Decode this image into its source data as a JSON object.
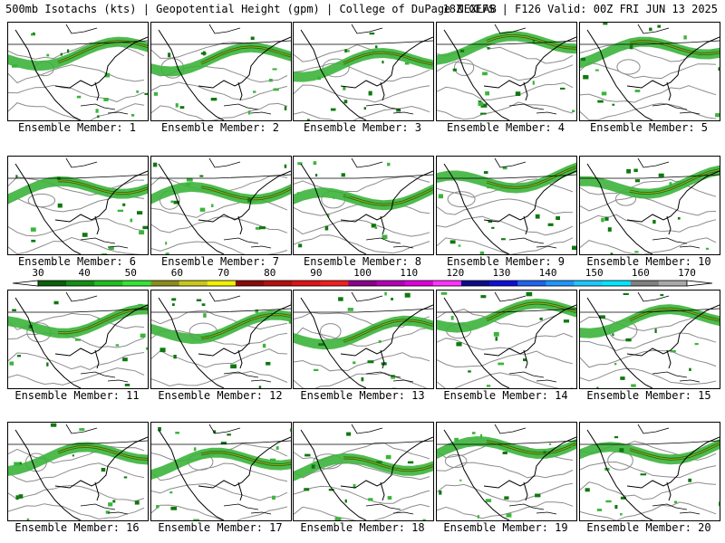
{
  "header": {
    "left": "500mb Isotachs (kts) | Geopotential Height (gpm) | College of DuPage NEXLAB",
    "right": "18Z GEFS | F126 Valid: 00Z FRI JUN 13 2025"
  },
  "member_label_prefix": "Ensemble Member: ",
  "members": [
    {
      "number": "1",
      "jet": "Ensemble Member: 1"
    },
    {
      "number": "2",
      "jet": "Ensemble Member: 2"
    },
    {
      "number": "3",
      "jet": "Ensemble Member: 3"
    },
    {
      "number": "4",
      "jet": "Ensemble Member: 4"
    },
    {
      "number": "5",
      "jet": "Ensemble Member: 5"
    },
    {
      "number": "6",
      "jet": "Ensemble Member: 6"
    },
    {
      "number": "7",
      "jet": "Ensemble Member: 7"
    },
    {
      "number": "8",
      "jet": "Ensemble Member: 8"
    },
    {
      "number": "9",
      "jet": "Ensemble Member: 9"
    },
    {
      "number": "10",
      "jet": "Ensemble Member: 10"
    },
    {
      "number": "11",
      "jet": "Ensemble Member: 11"
    },
    {
      "number": "12",
      "jet": "Ensemble Member: 12"
    },
    {
      "number": "13",
      "jet": "Ensemble Member: 13"
    },
    {
      "number": "14",
      "jet": "Ensemble Member: 14"
    },
    {
      "number": "15",
      "jet": "Ensemble Member: 15"
    },
    {
      "number": "16",
      "jet": "Ensemble Member: 16"
    },
    {
      "number": "17",
      "jet": "Ensemble Member: 17"
    },
    {
      "number": "18",
      "jet": "Ensemble Member: 18"
    },
    {
      "number": "19",
      "jet": "Ensemble Member: 19"
    },
    {
      "number": "20",
      "jet": "Ensemble Member: 20"
    }
  ],
  "colorbar": {
    "ticks": [
      "30",
      "40",
      "50",
      "60",
      "70",
      "80",
      "90",
      "100",
      "110",
      "120",
      "130",
      "140",
      "150",
      "160",
      "170"
    ],
    "colors": [
      "#0b5f0b",
      "#138f13",
      "#1fbf1f",
      "#33e633",
      "#8c8c1a",
      "#c8c81a",
      "#f0f000",
      "#8b0a0a",
      "#b40f0f",
      "#dc1414",
      "#f01e1e",
      "#8b008b",
      "#b400b4",
      "#dc00dc",
      "#ff33ff",
      "#0a0a8b",
      "#0f0fd2",
      "#1e64f0",
      "#1e96ff",
      "#1ec8ff",
      "#00e6ff",
      "#808080",
      "#a9a9a9"
    ],
    "arrow_color": "#ffffff"
  },
  "map_colors": {
    "background": "#ffffff",
    "coast": "#000000",
    "height_contour": "#8c8c8c",
    "jet_light": "#3cb43c",
    "jet_dark": "#0f780f",
    "jet_core": "#a0a01e"
  }
}
